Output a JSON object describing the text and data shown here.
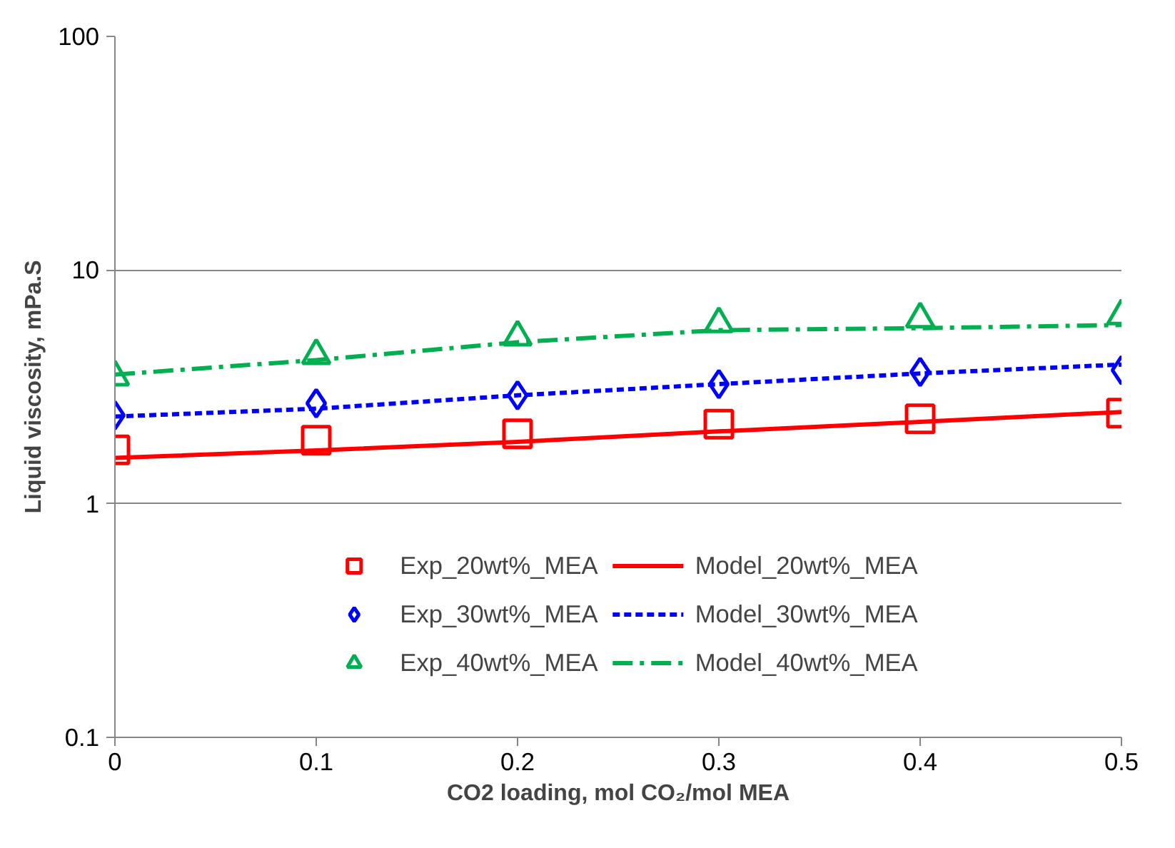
{
  "chart_data": {
    "type": "line",
    "xlabel": "CO2 loading, mol CO₂/mol MEA",
    "ylabel": "Liquid viscosity, mPa.S",
    "x": [
      0,
      0.1,
      0.2,
      0.3,
      0.4,
      0.5
    ],
    "xlim": [
      0,
      0.5
    ],
    "xticks": [
      0,
      0.1,
      0.2,
      0.3,
      0.4,
      0.5
    ],
    "ylim": [
      0.1,
      100
    ],
    "yticks": [
      0.1,
      1,
      10,
      100
    ],
    "log": true,
    "grid": "y",
    "legend": "bottom",
    "series": [
      {
        "name": "Exp_20wt%_MEA",
        "type": "scatter",
        "marker": "square",
        "color": "#ff0000",
        "values": [
          1.7,
          1.87,
          1.99,
          2.19,
          2.31,
          2.44
        ]
      },
      {
        "name": "Model_20wt%_MEA",
        "line_style": "solid",
        "color": "#ff0000",
        "values": [
          1.57,
          1.69,
          1.84,
          2.04,
          2.24,
          2.47
        ]
      },
      {
        "name": "Exp_30wt%_MEA",
        "type": "scatter",
        "marker": "diamond",
        "color": "#0000ff",
        "values": [
          2.39,
          2.69,
          2.91,
          3.25,
          3.66,
          3.73
        ]
      },
      {
        "name": "Model_30wt%_MEA",
        "line_style": "dashed",
        "color": "#0000ff",
        "values": [
          2.36,
          2.55,
          2.91,
          3.25,
          3.61,
          3.94
        ]
      },
      {
        "name": "Exp_40wt%_MEA",
        "type": "scatter",
        "marker": "triangle",
        "color": "#00b050",
        "values": [
          3.49,
          4.31,
          5.17,
          5.9,
          6.18,
          6.38
        ]
      },
      {
        "name": "Model_40wt%_MEA",
        "line_style": "dashdot",
        "color": "#00b050",
        "values": [
          3.57,
          4.12,
          4.91,
          5.53,
          5.64,
          5.82
        ]
      }
    ]
  }
}
